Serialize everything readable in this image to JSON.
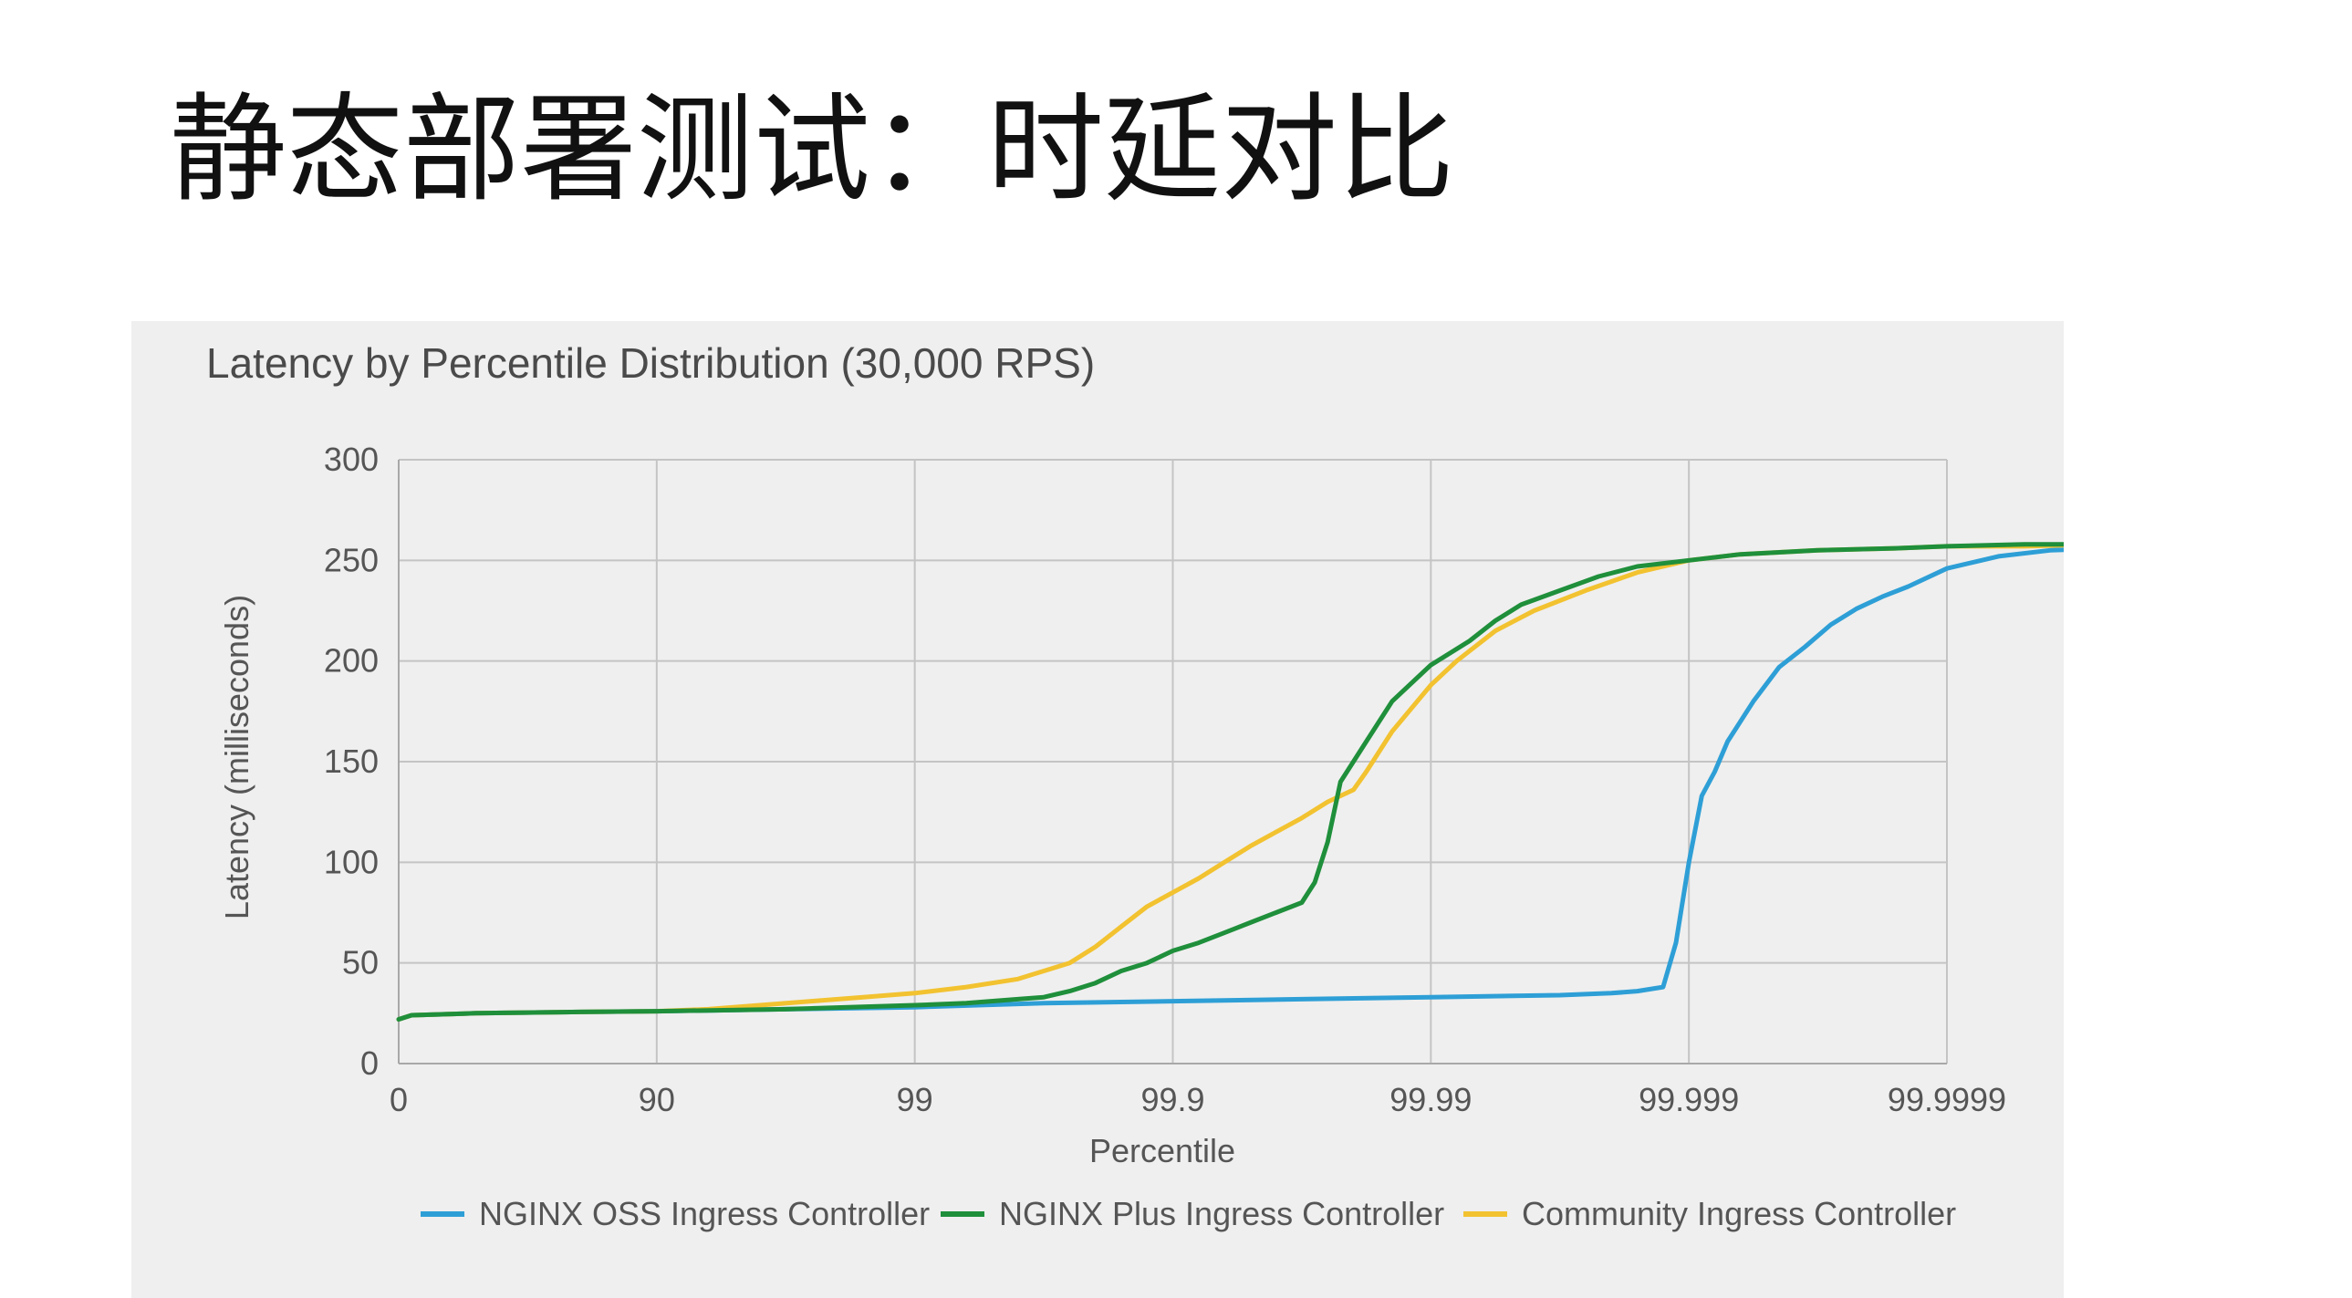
{
  "slide": {
    "title": "静态部署测试：时延对比"
  },
  "chart_data": {
    "type": "line",
    "title": "Latency by Percentile Distribution (30,000 RPS)",
    "xlabel": "Percentile",
    "ylabel": "Latency (milliseconds)",
    "x_scale": "log-percentile (nines)",
    "categories": [
      "0",
      "90",
      "99",
      "99.9",
      "99.99",
      "99.999",
      "99.9999"
    ],
    "ylim": [
      0,
      300
    ],
    "yticks": [
      "300",
      "250",
      "200",
      "150",
      "100",
      "50",
      "0"
    ],
    "grid": true,
    "legend_position": "bottom",
    "series": [
      {
        "name": "NGINX OSS Ingress Controller",
        "color": "#2e9fd6",
        "points": [
          [
            0,
            22
          ],
          [
            0.05,
            24
          ],
          [
            0.3,
            25
          ],
          [
            0.6,
            25.5
          ],
          [
            1,
            26
          ],
          [
            1.5,
            27
          ],
          [
            2,
            28
          ],
          [
            2.5,
            30
          ],
          [
            3,
            31
          ],
          [
            3.5,
            32
          ],
          [
            4,
            33
          ],
          [
            4.5,
            34
          ],
          [
            4.7,
            35
          ],
          [
            4.8,
            36
          ],
          [
            4.9,
            38
          ],
          [
            4.95,
            60
          ],
          [
            5.0,
            100
          ],
          [
            5.05,
            133
          ],
          [
            5.1,
            145
          ],
          [
            5.15,
            160
          ],
          [
            5.25,
            180
          ],
          [
            5.35,
            197
          ],
          [
            5.45,
            207
          ],
          [
            5.55,
            218
          ],
          [
            5.65,
            226
          ],
          [
            5.75,
            232
          ],
          [
            5.85,
            237
          ],
          [
            6,
            246
          ],
          [
            6.2,
            252
          ],
          [
            6.4,
            255
          ],
          [
            6.6,
            256
          ],
          [
            6.8,
            257
          ],
          [
            6.9,
            258
          ],
          [
            6.94,
            258
          ],
          [
            6.97,
            264
          ],
          [
            7,
            264
          ]
        ]
      },
      {
        "name": "NGINX Plus Ingress Controller",
        "color": "#1f8f3b",
        "points": [
          [
            0,
            22
          ],
          [
            0.05,
            24
          ],
          [
            0.3,
            25
          ],
          [
            0.6,
            25.5
          ],
          [
            1,
            26
          ],
          [
            1.5,
            27
          ],
          [
            2,
            29
          ],
          [
            2.2,
            30
          ],
          [
            2.4,
            32
          ],
          [
            2.5,
            33
          ],
          [
            2.6,
            36
          ],
          [
            2.7,
            40
          ],
          [
            2.8,
            46
          ],
          [
            2.9,
            50
          ],
          [
            3,
            56
          ],
          [
            3.1,
            60
          ],
          [
            3.2,
            65
          ],
          [
            3.3,
            70
          ],
          [
            3.4,
            75
          ],
          [
            3.5,
            80
          ],
          [
            3.55,
            90
          ],
          [
            3.6,
            110
          ],
          [
            3.65,
            140
          ],
          [
            3.75,
            160
          ],
          [
            3.85,
            180
          ],
          [
            4,
            198
          ],
          [
            4.15,
            210
          ],
          [
            4.25,
            220
          ],
          [
            4.35,
            228
          ],
          [
            4.5,
            235
          ],
          [
            4.65,
            242
          ],
          [
            4.8,
            247
          ],
          [
            5,
            250
          ],
          [
            5.2,
            253
          ],
          [
            5.5,
            255
          ],
          [
            5.8,
            256
          ],
          [
            6,
            257
          ],
          [
            6.3,
            258
          ],
          [
            6.6,
            258
          ],
          [
            6.9,
            258
          ],
          [
            6.95,
            260
          ],
          [
            7,
            260
          ]
        ]
      },
      {
        "name": "Community Ingress Controller",
        "color": "#f2c230",
        "points": [
          [
            0,
            22
          ],
          [
            0.05,
            24
          ],
          [
            0.3,
            25
          ],
          [
            0.6,
            25.5
          ],
          [
            1,
            26
          ],
          [
            1.2,
            27
          ],
          [
            1.4,
            29
          ],
          [
            1.6,
            31
          ],
          [
            1.8,
            33
          ],
          [
            2,
            35
          ],
          [
            2.2,
            38
          ],
          [
            2.4,
            42
          ],
          [
            2.5,
            46
          ],
          [
            2.6,
            50
          ],
          [
            2.7,
            58
          ],
          [
            2.8,
            68
          ],
          [
            2.9,
            78
          ],
          [
            3,
            85
          ],
          [
            3.1,
            92
          ],
          [
            3.2,
            100
          ],
          [
            3.3,
            108
          ],
          [
            3.4,
            115
          ],
          [
            3.5,
            122
          ],
          [
            3.6,
            130
          ],
          [
            3.7,
            136
          ],
          [
            3.75,
            145
          ],
          [
            3.85,
            165
          ],
          [
            4,
            188
          ],
          [
            4.1,
            200
          ],
          [
            4.25,
            215
          ],
          [
            4.4,
            225
          ],
          [
            4.6,
            235
          ],
          [
            4.8,
            244
          ],
          [
            5,
            250
          ],
          [
            5.2,
            253
          ],
          [
            5.5,
            255
          ],
          [
            5.8,
            256
          ],
          [
            6,
            257
          ],
          [
            6.3,
            257
          ],
          [
            6.6,
            258
          ],
          [
            6.9,
            258
          ],
          [
            7,
            259
          ]
        ]
      }
    ]
  }
}
